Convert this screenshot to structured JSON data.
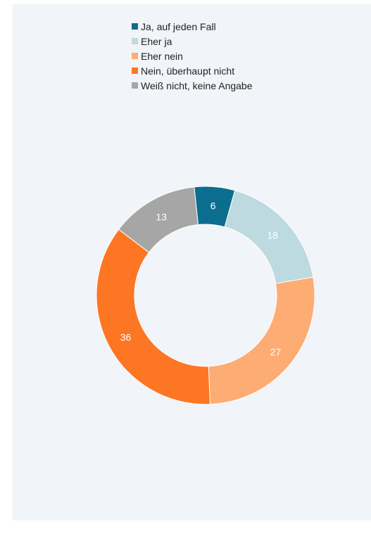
{
  "chart_data": {
    "type": "pie",
    "variant": "donut",
    "title": "",
    "legend_position": "top",
    "categories": [
      "Ja, auf jeden Fall",
      "Eher ja",
      "Eher nein",
      "Nein, überhaupt nicht",
      "Weiß nicht, keine Angabe"
    ],
    "values": [
      6,
      18,
      27,
      36,
      13
    ],
    "labels": [
      "6",
      "18",
      "27",
      "36",
      "13"
    ],
    "colors": [
      "#0b6e8f",
      "#bcdae0",
      "#fdac73",
      "#fd7623",
      "#a6a6a6"
    ]
  }
}
